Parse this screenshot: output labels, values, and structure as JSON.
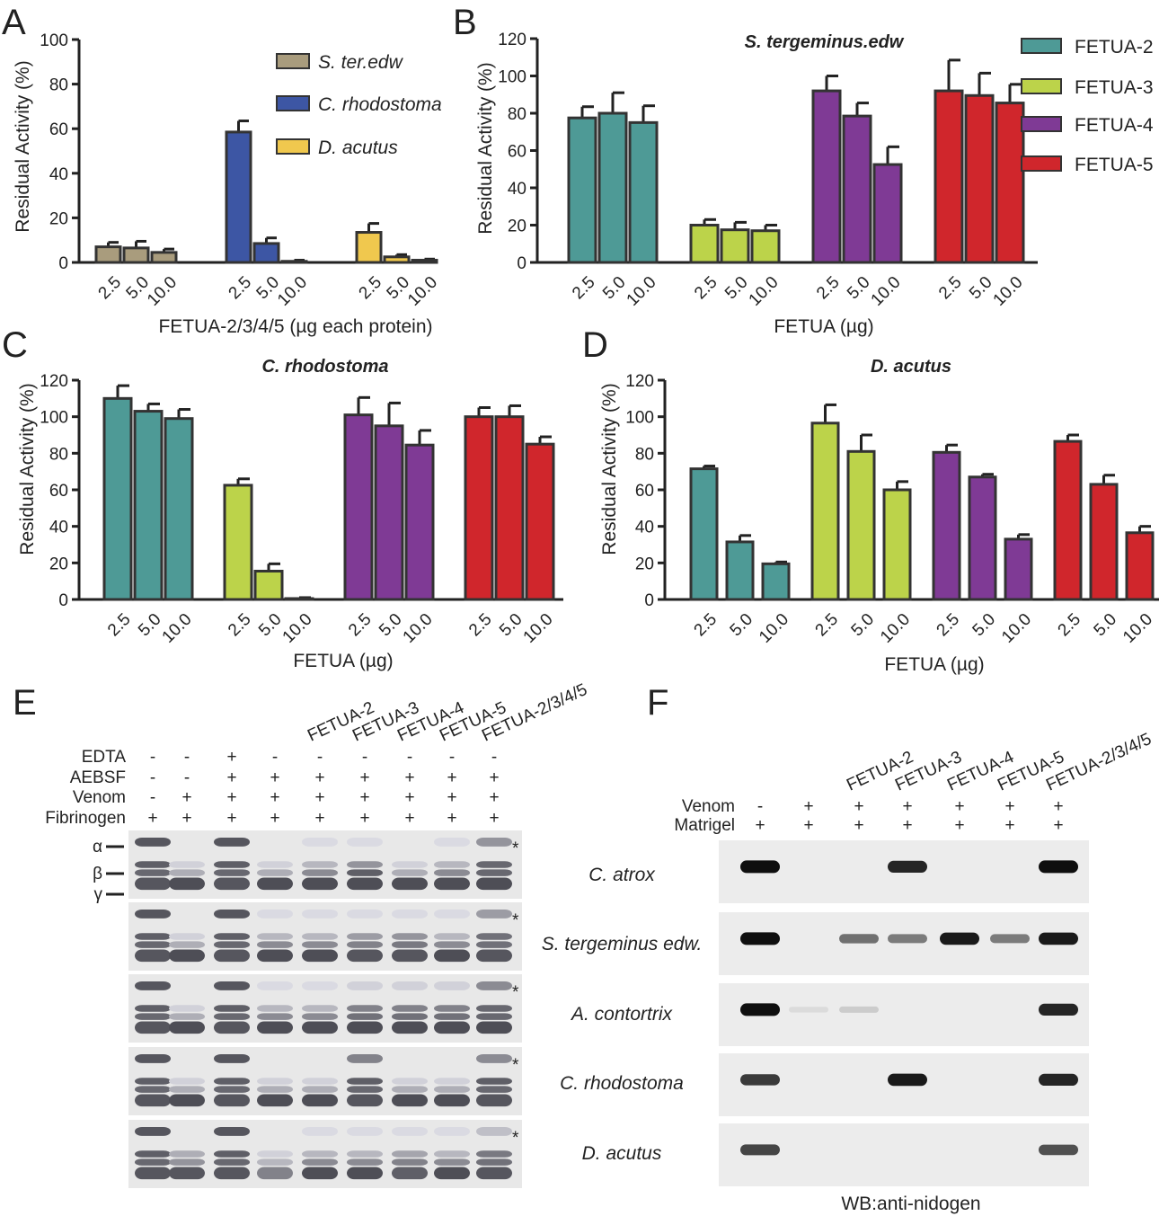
{
  "colors": {
    "ster": "#a99c7d",
    "crho": "#3d56a4",
    "dacu": "#f0c84e",
    "f2": "#4e9a96",
    "f3": "#bcd34a",
    "f4": "#7f3a95",
    "f5": "#d0262c"
  },
  "doses": [
    "2.5",
    "5.0",
    "10.0"
  ],
  "panels": {
    "A": {
      "letter": "A",
      "ylabel": "Residual Activity (%)",
      "xlabel": "FETUA-2/3/4/5 (µg each protein)"
    },
    "B": {
      "letter": "B",
      "ylabel": "Residual Activity (%)",
      "xlabel": "FETUA (µg)",
      "title": "S. tergeminus.edw"
    },
    "C": {
      "letter": "C",
      "ylabel": "Residual Activity (%)",
      "xlabel": "FETUA (µg)",
      "title": "C. rhodostoma"
    },
    "D": {
      "letter": "D",
      "ylabel": "Residual Activity (%)",
      "xlabel": "FETUA (µg)",
      "title": "D. acutus"
    },
    "E": {
      "letter": "E"
    },
    "F": {
      "letter": "F"
    }
  },
  "chart_data": [
    {
      "panel": "A",
      "type": "bar",
      "ylim": [
        0,
        100
      ],
      "yticks": [
        0,
        20,
        40,
        60,
        80,
        100
      ],
      "categories": [
        "2.5",
        "5.0",
        "10.0"
      ],
      "series": [
        {
          "name": "S. ter.edw",
          "color_key": "ster",
          "values": [
            7,
            6.5,
            4.5
          ],
          "errors": [
            2,
            3,
            1.5
          ]
        },
        {
          "name": "C. rhodostoma",
          "color_key": "crho",
          "values": [
            58.5,
            8.5,
            0.5
          ],
          "errors": [
            5,
            2.5,
            0.5
          ]
        },
        {
          "name": "D. acutus",
          "color_key": "dacu",
          "values": [
            13.5,
            2.5,
            1
          ],
          "errors": [
            4,
            1,
            0.5
          ]
        }
      ],
      "legend": "top-right"
    },
    {
      "panel": "B",
      "type": "bar",
      "ylim": [
        0,
        120
      ],
      "yticks": [
        0,
        20,
        40,
        60,
        80,
        100,
        120
      ],
      "categories": [
        "2.5",
        "5.0",
        "10.0"
      ],
      "series": [
        {
          "name": "FETUA-2",
          "color_key": "f2",
          "values": [
            77.5,
            80,
            75
          ],
          "errors": [
            6,
            11,
            9
          ]
        },
        {
          "name": "FETUA-3",
          "color_key": "f3",
          "values": [
            20,
            17.5,
            17
          ],
          "errors": [
            3,
            4,
            3
          ]
        },
        {
          "name": "FETUA-4",
          "color_key": "f4",
          "values": [
            92,
            78.5,
            52.5
          ],
          "errors": [
            8,
            7,
            9.5
          ]
        },
        {
          "name": "FETUA-5",
          "color_key": "f5",
          "values": [
            92,
            89.5,
            85.5
          ],
          "errors": [
            16.5,
            12,
            10
          ]
        }
      ],
      "legend": "right"
    },
    {
      "panel": "C",
      "type": "bar",
      "ylim": [
        0,
        120
      ],
      "yticks": [
        0,
        20,
        40,
        60,
        80,
        100,
        120
      ],
      "categories": [
        "2.5",
        "5.0",
        "10.0"
      ],
      "series": [
        {
          "name": "FETUA-2",
          "color_key": "f2",
          "values": [
            110,
            103,
            99
          ],
          "errors": [
            7,
            4,
            5
          ]
        },
        {
          "name": "FETUA-3",
          "color_key": "f3",
          "values": [
            62.5,
            15.5,
            0.5
          ],
          "errors": [
            3.5,
            4,
            0.5
          ]
        },
        {
          "name": "FETUA-4",
          "color_key": "f4",
          "values": [
            101,
            95,
            84.5
          ],
          "errors": [
            9.5,
            12.5,
            8
          ]
        },
        {
          "name": "FETUA-5",
          "color_key": "f5",
          "values": [
            100,
            100,
            85
          ],
          "errors": [
            5,
            6,
            4
          ]
        }
      ]
    },
    {
      "panel": "D",
      "type": "bar",
      "ylim": [
        0,
        120
      ],
      "yticks": [
        0,
        20,
        40,
        60,
        80,
        100,
        120
      ],
      "categories": [
        "2.5",
        "5.0",
        "10.0"
      ],
      "series": [
        {
          "name": "FETUA-2",
          "color_key": "f2",
          "values": [
            71.5,
            31.5,
            19.5
          ],
          "errors": [
            1.5,
            3.5,
            1
          ]
        },
        {
          "name": "FETUA-3",
          "color_key": "f3",
          "values": [
            96.5,
            81,
            60
          ],
          "errors": [
            10,
            9,
            4.5
          ]
        },
        {
          "name": "FETUA-4",
          "color_key": "f4",
          "values": [
            80.5,
            67,
            33
          ],
          "errors": [
            4,
            1.5,
            2.5
          ]
        },
        {
          "name": "FETUA-5",
          "color_key": "f5",
          "values": [
            86.5,
            63,
            36.5
          ],
          "errors": [
            3.5,
            5,
            3.5
          ]
        }
      ]
    }
  ],
  "gelE": {
    "lane_labels": [
      "FETUA-2",
      "FETUA-3",
      "FETUA-4",
      "FETUA-5",
      "FETUA-2/3/4/5"
    ],
    "rows": [
      {
        "label": "EDTA",
        "marks": [
          "-",
          "-",
          "+",
          "-",
          "-",
          "-",
          "-",
          "-",
          "-"
        ]
      },
      {
        "label": "AEBSF",
        "marks": [
          "-",
          "-",
          "+",
          "+",
          "+",
          "+",
          "+",
          "+",
          "+"
        ]
      },
      {
        "label": "Venom",
        "marks": [
          "-",
          "+",
          "+",
          "+",
          "+",
          "+",
          "+",
          "+",
          "+"
        ]
      },
      {
        "label": "Fibrinogen",
        "marks": [
          "+",
          "+",
          "+",
          "+",
          "+",
          "+",
          "+",
          "+",
          "+"
        ]
      }
    ],
    "chains": [
      "α",
      "β",
      "γ"
    ],
    "asterisk": "*"
  },
  "gelF": {
    "lane_labels": [
      "FETUA-2",
      "FETUA-3",
      "FETUA-4",
      "FETUA-5",
      "FETUA-2/3/4/5"
    ],
    "rows": [
      {
        "label": "Venom",
        "marks": [
          "-",
          "+",
          "+",
          "+",
          "+",
          "+",
          "+"
        ]
      },
      {
        "label": "Matrigel",
        "marks": [
          "+",
          "+",
          "+",
          "+",
          "+",
          "+",
          "+"
        ]
      }
    ],
    "species": [
      "C. atrox",
      "S. tergeminus edw.",
      "A. contortrix",
      "C. rhodostoma",
      "D. acutus"
    ],
    "footer": "WB:anti-nidogen"
  }
}
